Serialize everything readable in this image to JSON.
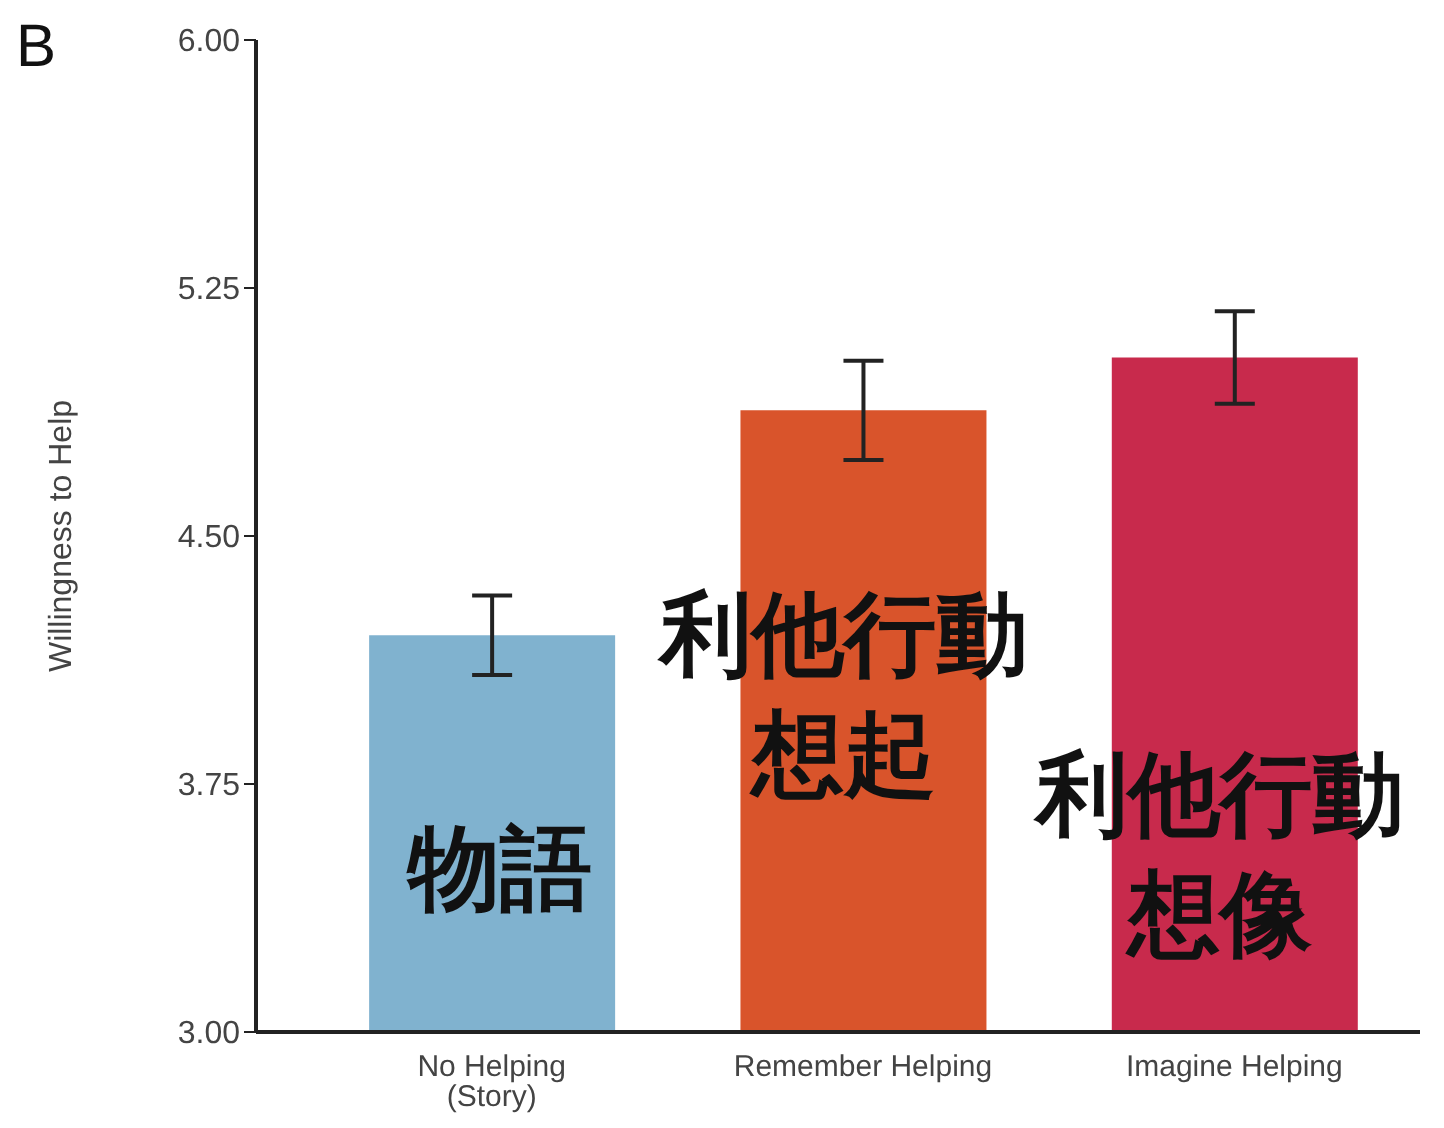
{
  "chart_data": {
    "type": "bar",
    "categories": [
      "No Helping (Story)",
      "Remember Helping",
      "Imagine Helping"
    ],
    "values": [
      4.2,
      4.88,
      5.04
    ],
    "errors": [
      0.12,
      0.15,
      0.14
    ],
    "colors": [
      "#80b2cf",
      "#d9542b",
      "#c82a4c"
    ],
    "ylabel": "Willingness to Help",
    "ylim": [
      3,
      6
    ],
    "yticks": [
      {
        "value": 3,
        "label": "3.00"
      },
      {
        "value": 3.75,
        "label": "3.75"
      },
      {
        "value": 4.5,
        "label": "4.50"
      },
      {
        "value": 5.25,
        "label": "5.25"
      },
      {
        "value": 6,
        "label": "6.00"
      }
    ],
    "grid": false,
    "legend": false,
    "annotations": [
      "B",
      "物語",
      "利他行動想起",
      "利他行動想像"
    ]
  }
}
